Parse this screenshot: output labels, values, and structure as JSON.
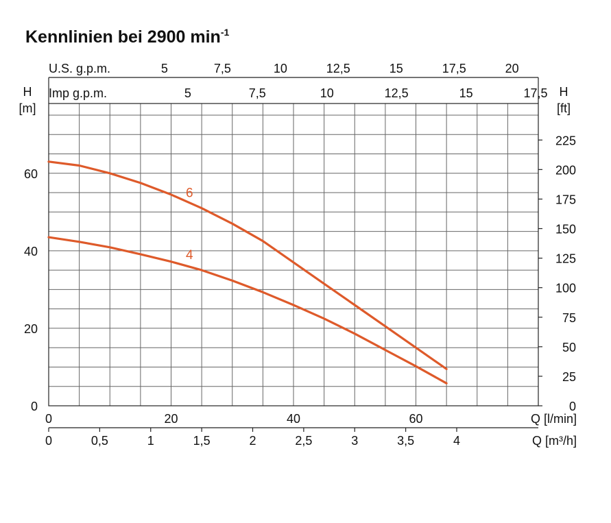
{
  "chart_data": {
    "type": "line",
    "title": "Kennlinien bei 2900 min",
    "title_superscript": "-1",
    "x": {
      "label": "Q [l/min]",
      "range": [
        0,
        80
      ],
      "ticks": [
        0,
        20,
        40,
        60
      ]
    },
    "x_secondary": {
      "label": "Q [m³/h]",
      "ticks": [
        {
          "label": "0",
          "value": 0
        },
        {
          "label": "0,5",
          "value": 0.5
        },
        {
          "label": "1",
          "value": 1
        },
        {
          "label": "1,5",
          "value": 1.5
        },
        {
          "label": "2",
          "value": 2
        },
        {
          "label": "2,5",
          "value": 2.5
        },
        {
          "label": "3",
          "value": 3
        },
        {
          "label": "3,5",
          "value": 3.5
        },
        {
          "label": "4",
          "value": 4
        }
      ]
    },
    "x_top_us": {
      "label": "U.S. g.p.m.",
      "ticks": [
        {
          "label": "5",
          "value": 5
        },
        {
          "label": "7,5",
          "value": 7.5
        },
        {
          "label": "10",
          "value": 10
        },
        {
          "label": "12,5",
          "value": 12.5
        },
        {
          "label": "15",
          "value": 15
        },
        {
          "label": "17,5",
          "value": 17.5
        },
        {
          "label": "20",
          "value": 20
        }
      ]
    },
    "x_top_imp": {
      "label": "Imp g.p.m.",
      "ticks": [
        {
          "label": "5",
          "value": 5
        },
        {
          "label": "7,5",
          "value": 7.5
        },
        {
          "label": "10",
          "value": 10
        },
        {
          "label": "12,5",
          "value": 12.5
        },
        {
          "label": "15",
          "value": 15
        },
        {
          "label": "17,5",
          "value": 17.5
        }
      ]
    },
    "y": {
      "label_top": "H",
      "label_unit": "[m]",
      "range": [
        0,
        78
      ],
      "ticks": [
        0,
        20,
        40,
        60
      ]
    },
    "y_right": {
      "label_top": "H",
      "label_unit": "[ft]",
      "ticks": [
        0,
        25,
        50,
        75,
        100,
        125,
        150,
        175,
        200,
        225
      ]
    },
    "grid": true,
    "series": [
      {
        "name": "6",
        "color": "#de5a2a",
        "points": [
          [
            0,
            63
          ],
          [
            5,
            62
          ],
          [
            10,
            60
          ],
          [
            15,
            57.5
          ],
          [
            20,
            54.5
          ],
          [
            25,
            51
          ],
          [
            30,
            47
          ],
          [
            35,
            42.5
          ],
          [
            40,
            37
          ],
          [
            45,
            31.5
          ],
          [
            50,
            26
          ],
          [
            55,
            20.5
          ],
          [
            60,
            15
          ],
          [
            65,
            9.5
          ]
        ]
      },
      {
        "name": "4",
        "color": "#de5a2a",
        "points": [
          [
            0,
            43.5
          ],
          [
            5,
            42.3
          ],
          [
            10,
            40.9
          ],
          [
            15,
            39.1
          ],
          [
            20,
            37.2
          ],
          [
            25,
            35
          ],
          [
            30,
            32.3
          ],
          [
            35,
            29.3
          ],
          [
            40,
            26
          ],
          [
            45,
            22.5
          ],
          [
            50,
            18.6
          ],
          [
            55,
            14.4
          ],
          [
            60,
            10.2
          ],
          [
            65,
            5.8
          ]
        ]
      }
    ]
  }
}
